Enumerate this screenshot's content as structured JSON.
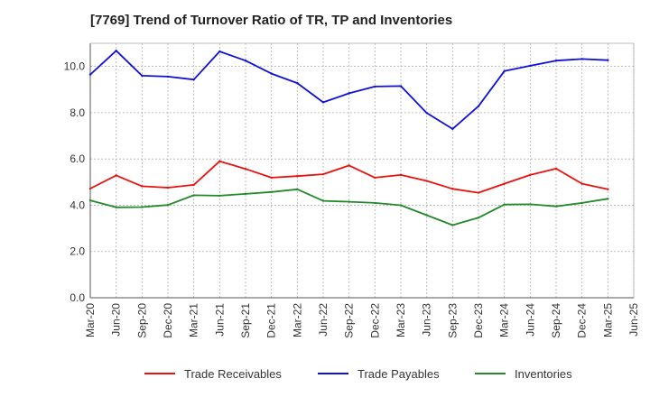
{
  "chart_data": {
    "type": "line",
    "title": "[7769]  Trend of Turnover Ratio of TR, TP and Inventories",
    "xlabel": "",
    "ylabel": "",
    "ylim": [
      0,
      11
    ],
    "yticks": [
      "0.0",
      "2.0",
      "4.0",
      "6.0",
      "8.0",
      "10.0"
    ],
    "ytick_values": [
      0,
      2,
      4,
      6,
      8,
      10
    ],
    "x": [
      "Mar-20",
      "Jun-20",
      "Sep-20",
      "Dec-20",
      "Mar-21",
      "Jun-21",
      "Sep-21",
      "Dec-21",
      "Mar-22",
      "Jun-22",
      "Sep-22",
      "Dec-22",
      "Mar-23",
      "Jun-23",
      "Sep-23",
      "Dec-23",
      "Mar-24",
      "Jun-24",
      "Sep-24",
      "Dec-24",
      "Mar-25",
      "Jun-25"
    ],
    "grid": true,
    "legend_position": "bottom",
    "series": [
      {
        "name": "Trade Receivables",
        "color": "#e8120e",
        "values": [
          4.72,
          5.29,
          4.82,
          4.76,
          4.88,
          5.9,
          5.57,
          5.19,
          5.26,
          5.34,
          5.72,
          5.19,
          5.31,
          5.05,
          4.71,
          4.54,
          4.93,
          5.31,
          5.58,
          4.93,
          4.69,
          null
        ]
      },
      {
        "name": "Trade Payables",
        "color": "#1010d8",
        "values": [
          9.65,
          10.68,
          9.6,
          9.56,
          9.43,
          10.65,
          10.25,
          9.69,
          9.28,
          8.45,
          8.84,
          9.13,
          9.15,
          7.99,
          7.3,
          8.28,
          9.8,
          10.03,
          10.25,
          10.32,
          10.27,
          null
        ]
      },
      {
        "name": "Inventories",
        "color": "#23892a",
        "values": [
          4.21,
          3.91,
          3.92,
          4.01,
          4.43,
          4.41,
          4.49,
          4.57,
          4.69,
          4.19,
          4.15,
          4.1,
          4.0,
          3.57,
          3.14,
          3.46,
          4.03,
          4.04,
          3.95,
          4.1,
          4.28,
          null
        ]
      }
    ]
  }
}
